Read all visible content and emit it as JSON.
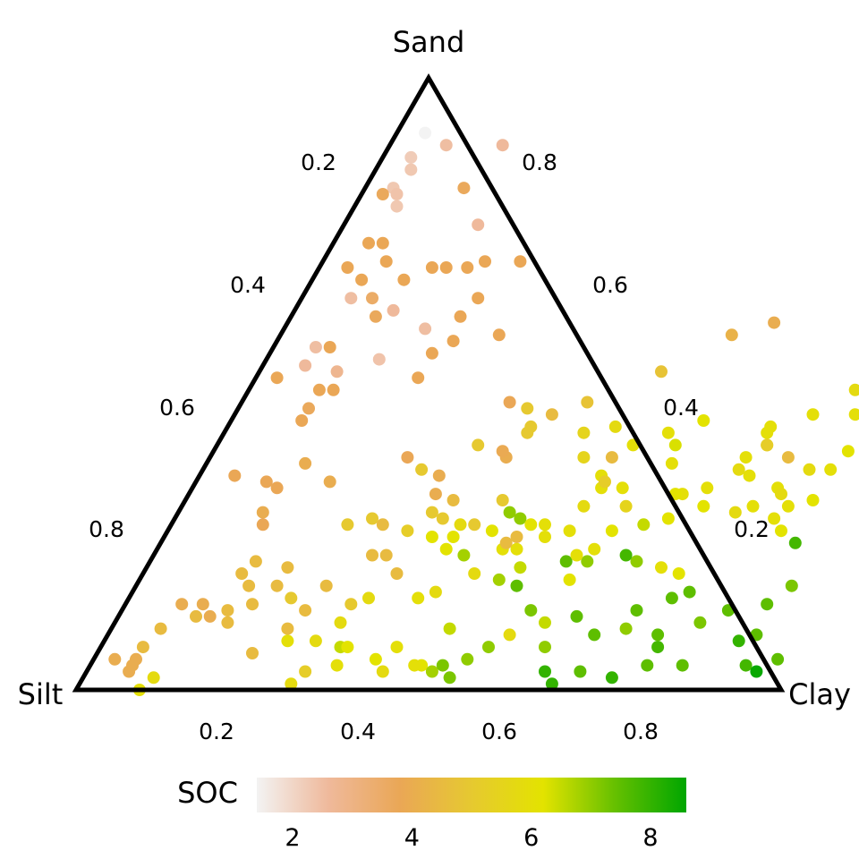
{
  "chart_data": {
    "type": "ternary-scatter",
    "axes": {
      "top": "Sand",
      "left": "Silt",
      "right": "Clay"
    },
    "ticks": {
      "bottom": [
        "0.2",
        "0.4",
        "0.6",
        "0.8"
      ],
      "left": [
        "0.2",
        "0.4",
        "0.6",
        "0.8"
      ],
      "right": [
        "0.8",
        "0.6",
        "0.4",
        "0.2"
      ]
    },
    "colorbar": {
      "title": "SOC",
      "ticks": [
        "2",
        "4",
        "6",
        "8"
      ],
      "range": [
        1.4,
        8.6
      ],
      "stops": [
        "#f3f3f3",
        "#efb99b",
        "#eaa756",
        "#e6c930",
        "#e3e300",
        "#66c000",
        "#00a600"
      ]
    },
    "points_columns": [
      "sand",
      "clay",
      "soc"
    ],
    "points": [
      [
        0.91,
        0.04,
        1.4
      ],
      [
        0.89,
        0.08,
        2.5
      ],
      [
        0.87,
        0.04,
        2.2
      ],
      [
        0.85,
        0.05,
        2.3
      ],
      [
        0.82,
        0.04,
        2.3
      ],
      [
        0.81,
        0.05,
        2.4
      ],
      [
        0.81,
        0.03,
        3.7
      ],
      [
        0.79,
        0.06,
        2.3
      ],
      [
        0.82,
        0.14,
        3.7
      ],
      [
        0.89,
        0.16,
        2.6
      ],
      [
        0.76,
        0.19,
        2.6
      ],
      [
        0.73,
        0.05,
        3.8
      ],
      [
        0.73,
        0.07,
        3.8
      ],
      [
        0.69,
        0.04,
        3.8
      ],
      [
        0.67,
        0.07,
        3.8
      ],
      [
        0.7,
        0.09,
        3.8
      ],
      [
        0.67,
        0.13,
        3.8
      ],
      [
        0.69,
        0.16,
        3.8
      ],
      [
        0.69,
        0.18,
        3.8
      ],
      [
        0.69,
        0.21,
        3.8
      ],
      [
        0.7,
        0.23,
        3.8
      ],
      [
        0.7,
        0.28,
        3.8
      ],
      [
        0.64,
        0.25,
        3.8
      ],
      [
        0.61,
        0.24,
        3.8
      ],
      [
        0.64,
        0.07,
        2.5
      ],
      [
        0.64,
        0.1,
        3.5
      ],
      [
        0.62,
        0.14,
        2.6
      ],
      [
        0.61,
        0.12,
        3.7
      ],
      [
        0.59,
        0.2,
        2.5
      ],
      [
        0.57,
        0.25,
        3.8
      ],
      [
        0.58,
        0.31,
        3.8
      ],
      [
        0.51,
        0.03,
        3.8
      ],
      [
        0.56,
        0.06,
        2.5
      ],
      [
        0.53,
        0.06,
        2.6
      ],
      [
        0.56,
        0.08,
        3.8
      ],
      [
        0.54,
        0.16,
        2.4
      ],
      [
        0.52,
        0.11,
        2.8
      ],
      [
        0.49,
        0.12,
        3.8
      ],
      [
        0.49,
        0.1,
        3.8
      ],
      [
        0.46,
        0.1,
        3.7
      ],
      [
        0.44,
        0.1,
        3.8
      ],
      [
        0.51,
        0.23,
        3.8
      ],
      [
        0.55,
        0.23,
        3.8
      ],
      [
        0.47,
        0.38,
        3.8
      ],
      [
        0.46,
        0.41,
        5.0
      ],
      [
        0.4,
        0.37,
        5.0
      ],
      [
        0.43,
        0.43,
        5.0
      ],
      [
        0.42,
        0.43,
        5.0
      ],
      [
        0.45,
        0.45,
        4.5
      ],
      [
        0.47,
        0.49,
        4.8
      ],
      [
        0.52,
        0.57,
        4.8
      ],
      [
        0.58,
        0.64,
        4.2
      ],
      [
        0.6,
        0.69,
        4.0
      ],
      [
        0.38,
        0.42,
        4.0
      ],
      [
        0.39,
        0.41,
        3.9
      ],
      [
        0.38,
        0.28,
        3.8
      ],
      [
        0.35,
        0.05,
        3.8
      ],
      [
        0.34,
        0.1,
        3.8
      ],
      [
        0.33,
        0.12,
        3.8
      ],
      [
        0.37,
        0.14,
        4.0
      ],
      [
        0.34,
        0.19,
        4.0
      ],
      [
        0.29,
        0.12,
        4.0
      ],
      [
        0.27,
        0.13,
        3.8
      ],
      [
        0.27,
        0.25,
        5.0
      ],
      [
        0.28,
        0.28,
        5.0
      ],
      [
        0.36,
        0.31,
        5.0
      ],
      [
        0.35,
        0.34,
        4.0
      ],
      [
        0.32,
        0.35,
        4.0
      ],
      [
        0.29,
        0.36,
        5.0
      ],
      [
        0.28,
        0.38,
        5.0
      ],
      [
        0.27,
        0.41,
        5.8
      ],
      [
        0.25,
        0.38,
        6.2
      ],
      [
        0.31,
        0.38,
        4.5
      ],
      [
        0.31,
        0.45,
        5.0
      ],
      [
        0.42,
        0.51,
        5.5
      ],
      [
        0.43,
        0.55,
        5.8
      ],
      [
        0.38,
        0.53,
        5.5
      ],
      [
        0.4,
        0.59,
        6.0
      ],
      [
        0.35,
        0.57,
        6.0
      ],
      [
        0.33,
        0.58,
        6.0
      ],
      [
        0.42,
        0.63,
        6.0
      ],
      [
        0.44,
        0.67,
        6.2
      ],
      [
        0.4,
        0.65,
        6.3
      ],
      [
        0.37,
        0.66,
        6.0
      ],
      [
        0.33,
        0.61,
        6.0
      ],
      [
        0.29,
        0.47,
        7.0
      ],
      [
        0.28,
        0.49,
        7.0
      ],
      [
        0.27,
        0.51,
        6.2
      ],
      [
        0.27,
        0.53,
        6.0
      ],
      [
        0.25,
        0.54,
        6.0
      ],
      [
        0.26,
        0.57,
        6.0
      ],
      [
        0.23,
        0.62,
        6.0
      ],
      [
        0.21,
        0.59,
        7.5
      ],
      [
        0.21,
        0.62,
        7.0
      ],
      [
        0.21,
        0.69,
        7.0
      ],
      [
        0.14,
        0.08,
        4.0
      ],
      [
        0.1,
        0.07,
        4.5
      ],
      [
        0.14,
        0.11,
        4.0
      ],
      [
        0.12,
        0.13,
        4.0
      ],
      [
        0.13,
        0.15,
        4.5
      ],
      [
        0.11,
        0.16,
        4.5
      ],
      [
        0.12,
        0.11,
        4.5
      ],
      [
        0.14,
        0.18,
        4.5
      ],
      [
        0.07,
        0.06,
        4.5
      ],
      [
        0.05,
        0.03,
        4.0
      ],
      [
        0.05,
        0.06,
        4.0
      ],
      [
        0.04,
        0.06,
        4.0
      ],
      [
        0.03,
        0.06,
        4.0
      ],
      [
        0.02,
        0.1,
        5.8
      ],
      [
        0.06,
        0.22,
        4.5
      ],
      [
        0.08,
        0.26,
        6.0
      ],
      [
        0.1,
        0.25,
        4.5
      ],
      [
        0.08,
        0.3,
        5.8
      ],
      [
        0.04,
        0.35,
        6.0
      ],
      [
        0.07,
        0.42,
        6.0
      ],
      [
        0.04,
        0.47,
        6.2
      ],
      [
        0.03,
        0.49,
        6.8
      ],
      [
        0.04,
        0.5,
        7.2
      ],
      [
        0.02,
        0.52,
        7.2
      ],
      [
        0.07,
        0.55,
        7.0
      ],
      [
        0.09,
        0.57,
        5.8
      ],
      [
        0.05,
        0.53,
        7.0
      ],
      [
        0.03,
        0.65,
        8.0
      ],
      [
        0.03,
        0.7,
        7.5
      ],
      [
        0.01,
        0.67,
        8.0
      ],
      [
        0.02,
        0.75,
        8.0
      ],
      [
        0.04,
        0.79,
        7.5
      ],
      [
        0.04,
        0.84,
        7.5
      ],
      [
        0.09,
        0.69,
        7.5
      ],
      [
        0.09,
        0.78,
        7.5
      ],
      [
        0.1,
        0.73,
        7.0
      ],
      [
        0.07,
        0.79,
        7.8
      ],
      [
        0.11,
        0.83,
        7.2
      ],
      [
        0.13,
        0.86,
        7.5
      ],
      [
        0.08,
        0.9,
        8.0
      ],
      [
        0.09,
        0.92,
        7.5
      ],
      [
        0.04,
        0.93,
        7.8
      ],
      [
        0.05,
        0.97,
        7.5
      ],
      [
        0.03,
        0.95,
        8.5
      ],
      [
        0.14,
        0.91,
        7.5
      ],
      [
        0.17,
        0.93,
        7.2
      ],
      [
        0.13,
        0.73,
        7.5
      ],
      [
        0.15,
        0.77,
        7.5
      ],
      [
        0.16,
        0.79,
        7.5
      ],
      [
        0.12,
        0.65,
        7.5
      ],
      [
        0.11,
        0.61,
        6.5
      ],
      [
        0.13,
        0.58,
        7.2
      ],
      [
        0.18,
        0.61,
        6.2
      ],
      [
        0.22,
        0.67,
        7.8
      ],
      [
        0.2,
        0.73,
        6.0
      ],
      [
        0.19,
        0.76,
        6.2
      ],
      [
        0.27,
        0.67,
        6.5
      ],
      [
        0.32,
        0.7,
        6.0
      ],
      [
        0.33,
        0.73,
        6.0
      ],
      [
        0.3,
        0.74,
        6.2
      ],
      [
        0.36,
        0.76,
        5.8
      ],
      [
        0.35,
        0.78,
        6.0
      ],
      [
        0.38,
        0.76,
        6.0
      ],
      [
        0.4,
        0.78,
        6.0
      ],
      [
        0.42,
        0.77,
        6.0
      ],
      [
        0.45,
        0.82,
        6.0
      ],
      [
        0.49,
        0.86,
        5.8
      ],
      [
        0.45,
        0.88,
        6.0
      ],
      [
        0.39,
        0.9,
        6.2
      ],
      [
        0.36,
        0.86,
        5.8
      ],
      [
        0.36,
        0.89,
        6.0
      ],
      [
        0.33,
        0.83,
        6.0
      ],
      [
        0.32,
        0.84,
        5.8
      ],
      [
        0.3,
        0.81,
        6.0
      ],
      [
        0.29,
        0.79,
        5.8
      ],
      [
        0.24,
        0.9,
        7.8
      ],
      [
        0.26,
        0.87,
        6.2
      ],
      [
        0.28,
        0.85,
        6.0
      ],
      [
        0.3,
        0.86,
        6.0
      ],
      [
        0.31,
        0.89,
        6.2
      ],
      [
        0.38,
        0.82,
        4.5
      ],
      [
        0.4,
        0.78,
        5.2
      ],
      [
        0.43,
        0.77,
        6.0
      ],
      [
        0.32,
        0.69,
        6.2
      ],
      [
        0.28,
        0.7,
        6.2
      ],
      [
        0.26,
        0.63,
        6.2
      ],
      [
        0.3,
        0.63,
        5.5
      ],
      [
        0.38,
        0.57,
        4.5
      ],
      [
        0.3,
        0.57,
        5.8
      ],
      [
        0.34,
        0.58,
        5.2
      ],
      [
        0.22,
        0.6,
        6.0
      ],
      [
        0.17,
        0.54,
        7.5
      ],
      [
        0.18,
        0.51,
        6.8
      ],
      [
        0.2,
        0.53,
        6.5
      ],
      [
        0.19,
        0.47,
        5.8
      ],
      [
        0.16,
        0.43,
        5.8
      ],
      [
        0.15,
        0.41,
        6.0
      ],
      [
        0.22,
        0.44,
        6.8
      ],
      [
        0.23,
        0.41,
        6.2
      ],
      [
        0.25,
        0.41,
        6.2
      ],
      [
        0.26,
        0.46,
        6.2
      ],
      [
        0.23,
        0.49,
        6.0
      ],
      [
        0.23,
        0.51,
        6.0
      ],
      [
        0.25,
        0.5,
        4.5
      ],
      [
        0.24,
        0.49,
        4.5
      ],
      [
        0.27,
        0.43,
        5.0
      ],
      [
        0.15,
        0.34,
        5.8
      ],
      [
        0.14,
        0.32,
        5.0
      ],
      [
        0.19,
        0.36,
        4.5
      ],
      [
        0.22,
        0.33,
        4.5
      ],
      [
        0.27,
        0.3,
        4.5
      ],
      [
        0.22,
        0.31,
        4.5
      ],
      [
        0.26,
        0.34,
        5.2
      ],
      [
        0.17,
        0.27,
        4.5
      ],
      [
        0.13,
        0.26,
        4.5
      ],
      [
        0.2,
        0.2,
        4.5
      ],
      [
        0.21,
        0.15,
        4.5
      ],
      [
        0.19,
        0.14,
        4.5
      ],
      [
        0.17,
        0.16,
        4.5
      ],
      [
        0.17,
        0.2,
        4.5
      ],
      [
        0.15,
        0.23,
        5.0
      ],
      [
        0.11,
        0.32,
        5.8
      ],
      [
        0.07,
        0.34,
        6.5
      ],
      [
        0.05,
        0.4,
        6.2
      ],
      [
        0.04,
        0.46,
        6.0
      ],
      [
        0.03,
        0.42,
        5.8
      ],
      [
        0.01,
        0.3,
        5.8
      ],
      [
        0.03,
        0.31,
        5.2
      ],
      [
        0.07,
        0.35,
        6.2
      ],
      [
        0.1,
        0.48,
        6.5
      ],
      [
        0.07,
        0.63,
        7.0
      ],
      [
        0.0,
        0.09,
        6.0
      ]
    ]
  }
}
